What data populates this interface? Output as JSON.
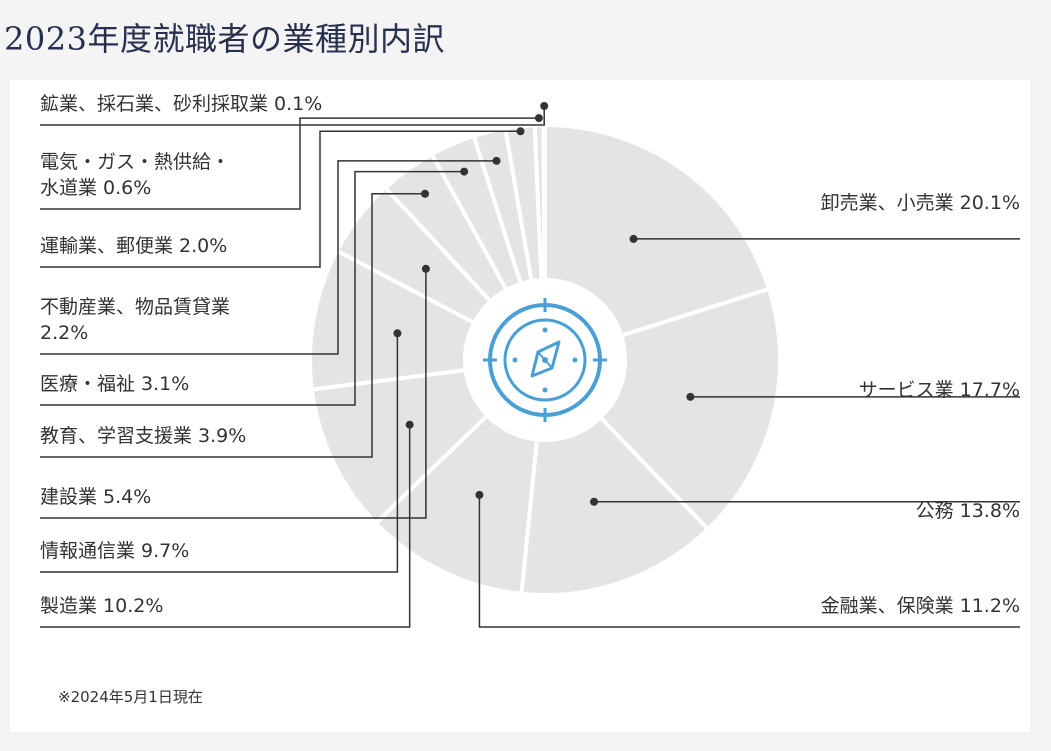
{
  "title": "2023年度就職者の業種別内訳",
  "note": "※2024年5月1日現在",
  "colors": {
    "slice": "#e4e4e4",
    "slice_edge": "#ffffff",
    "line": "#333333",
    "icon": "#4a9fd4",
    "background": "#f4f4f4"
  },
  "center_icon": "compass-icon",
  "chart_data": {
    "type": "pie",
    "style": "donut",
    "unit": "%",
    "slices": [
      {
        "label": "卸売業、小売業",
        "value": 20.1,
        "display": "卸売業、小売業 20.1%"
      },
      {
        "label": "サービス業",
        "value": 17.7,
        "display": "サービス業 17.7%"
      },
      {
        "label": "公務",
        "value": 13.8,
        "display": "公務 13.8%"
      },
      {
        "label": "金融業、保険業",
        "value": 11.2,
        "display": "金融業、保険業 11.2%"
      },
      {
        "label": "製造業",
        "value": 10.2,
        "display": "製造業 10.2%"
      },
      {
        "label": "情報通信業",
        "value": 9.7,
        "display": "情報通信業 9.7%"
      },
      {
        "label": "建設業",
        "value": 5.4,
        "display": "建設業 5.4%"
      },
      {
        "label": "教育、学習支援業",
        "value": 3.9,
        "display": "教育、学習支援業 3.9%"
      },
      {
        "label": "医療・福祉",
        "value": 3.1,
        "display": "医療・福祉 3.1%"
      },
      {
        "label": "不動産業、物品賃貸業",
        "value": 2.2,
        "display": "不動産業、物品賃貸業\n2.2%"
      },
      {
        "label": "運輸業、郵便業",
        "value": 2.0,
        "display": "運輸業、郵便業 2.0%"
      },
      {
        "label": "電気・ガス・熱供給・水道業",
        "value": 0.6,
        "display": "電気・ガス・熱供給・\n水道業 0.6%"
      },
      {
        "label": "鉱業、採石業、砂利採取業",
        "value": 0.1,
        "display": "鉱業、採石業、砂利採取業 0.1%"
      }
    ],
    "legend": "callout-labels"
  }
}
